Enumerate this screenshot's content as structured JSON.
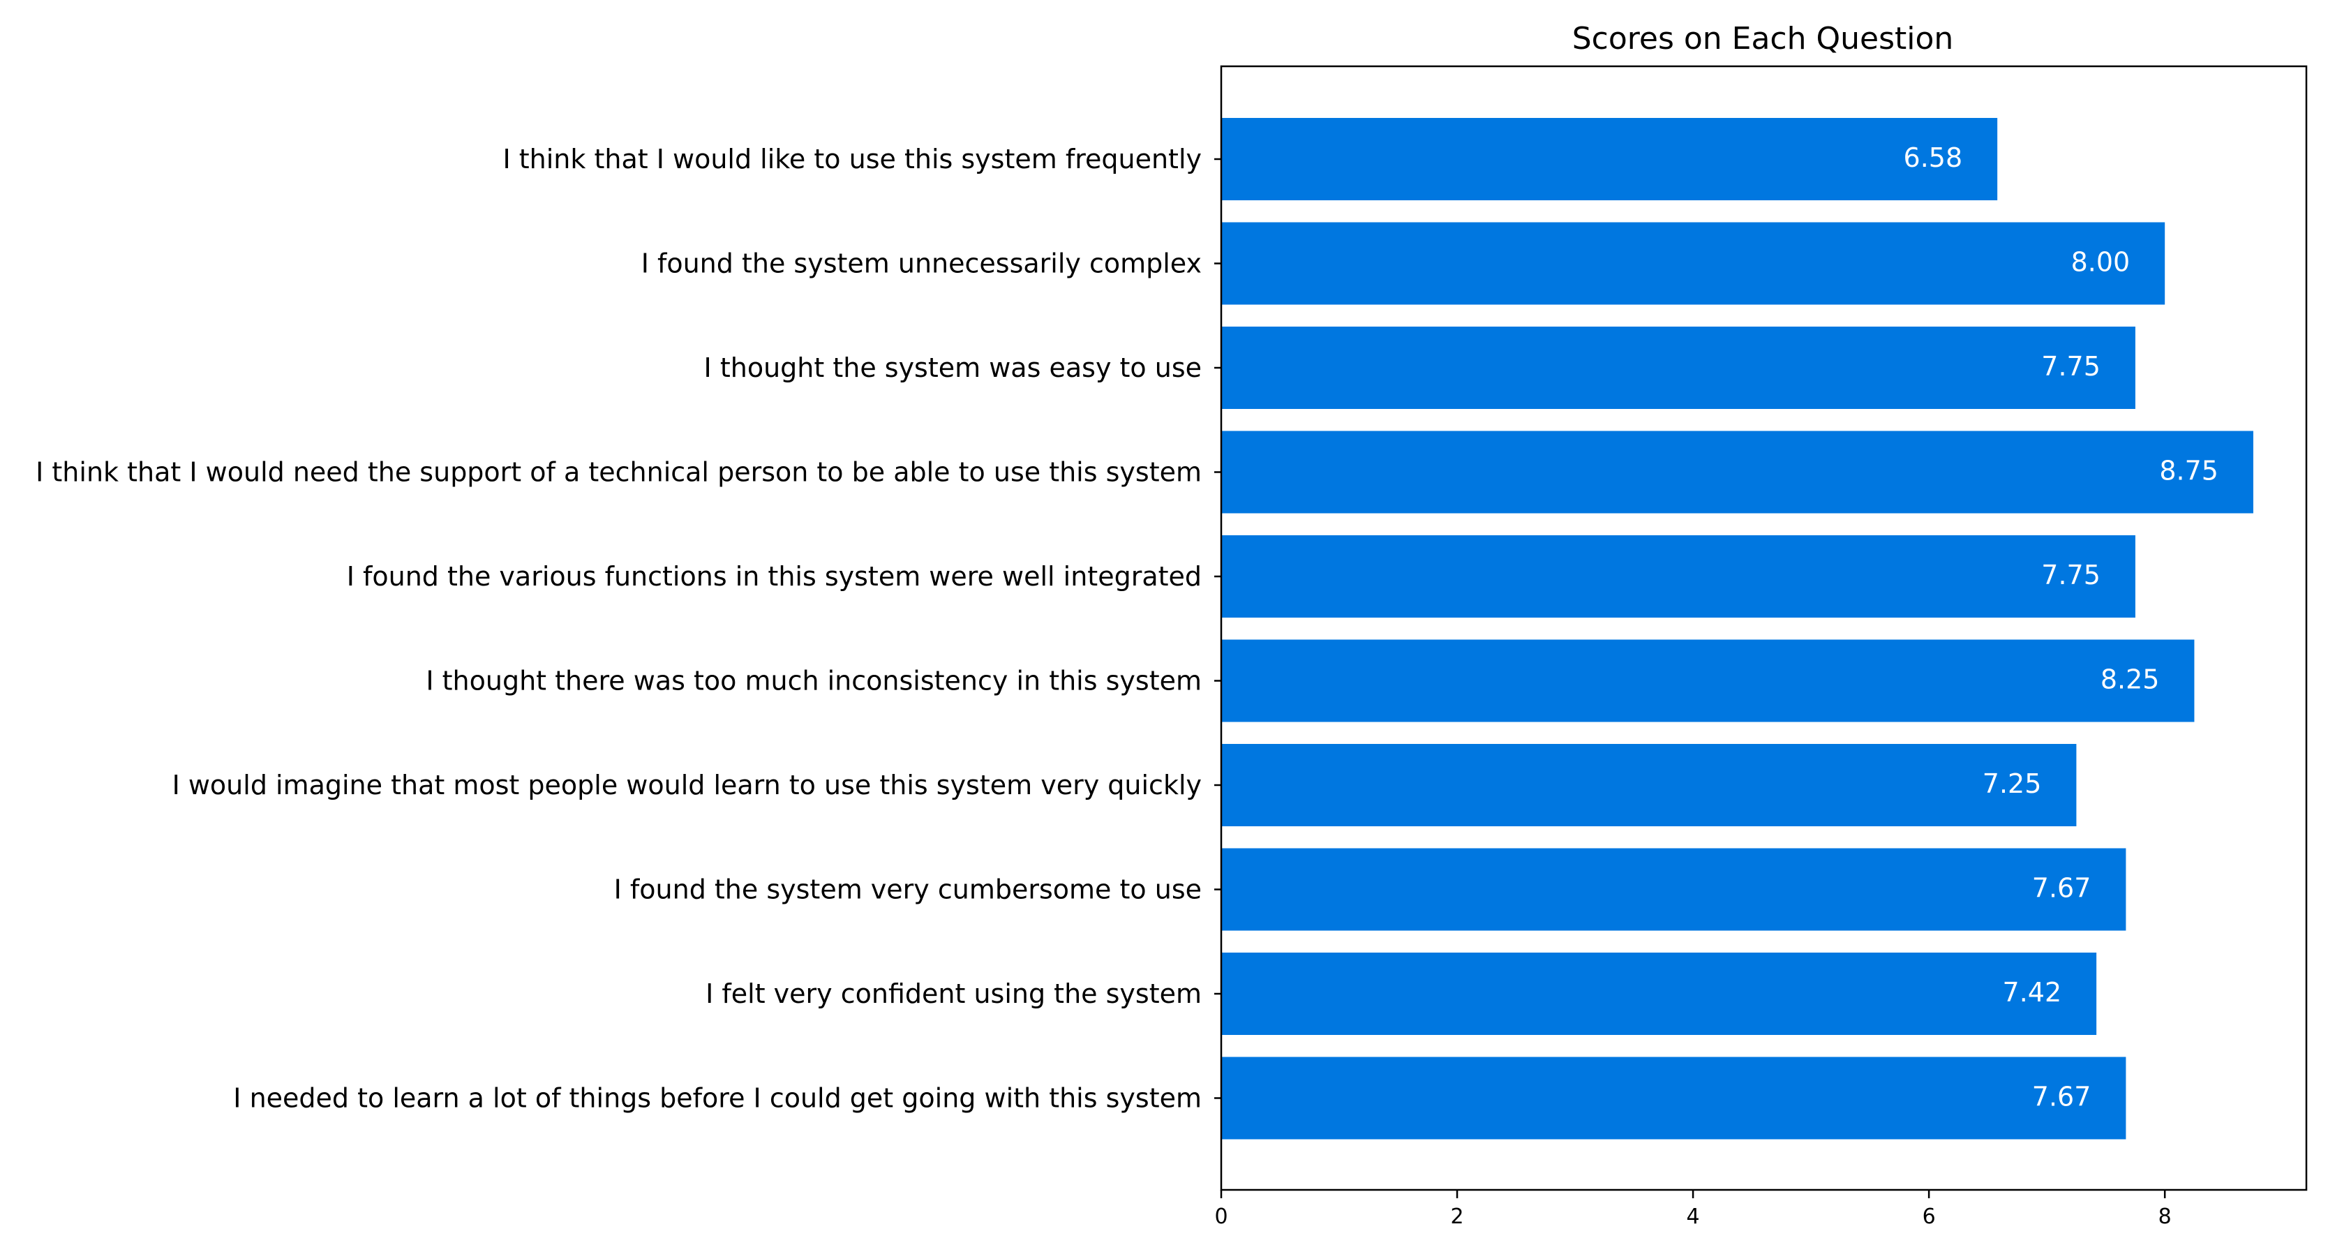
{
  "chart_data": {
    "type": "bar",
    "orientation": "horizontal",
    "title": "Scores on Each Question",
    "xlabel": "",
    "ylabel": "",
    "xlim": [
      0,
      9.2
    ],
    "xticks": [
      0,
      2,
      4,
      6,
      8
    ],
    "grid": false,
    "bar_color": "#0077e0",
    "categories": [
      "I think that I would like to use this system frequently",
      "I found the system unnecessarily complex",
      "I thought the system was easy to use",
      "I think that I would need the support of a technical person to be able to use this system",
      "I found the various functions in this system were well integrated",
      "I thought there was too much inconsistency in this system",
      "I would imagine that most people would learn to use this system very quickly",
      "I found the system very cumbersome to use",
      "I felt very confident using the system",
      "I needed to learn a lot of things before I could get going with this system"
    ],
    "values": [
      6.58,
      8.0,
      7.75,
      8.75,
      7.75,
      8.25,
      7.25,
      7.67,
      7.42,
      7.67
    ],
    "value_labels": [
      "6.58",
      "8.00",
      "7.75",
      "8.75",
      "7.75",
      "8.25",
      "7.25",
      "7.67",
      "7.42",
      "7.67"
    ]
  }
}
